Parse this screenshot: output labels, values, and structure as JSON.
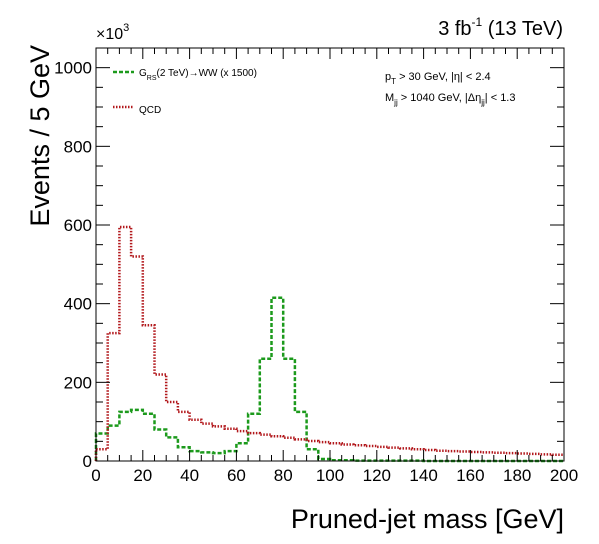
{
  "chart_data": {
    "type": "line",
    "subtype": "step-histogram",
    "xlabel": "Pruned-jet mass [GeV]",
    "ylabel": "Events / 5 GeV",
    "y_multiplier": "×10",
    "y_multiplier_exp": "3",
    "header_main": "3 fb",
    "header_exp": "-1",
    "header_tail": " (13 TeV)",
    "xlim": [
      0,
      200
    ],
    "ylim": [
      0,
      1050
    ],
    "xticks": [
      0,
      20,
      40,
      60,
      80,
      100,
      120,
      140,
      160,
      180,
      200
    ],
    "yticks": [
      0,
      200,
      400,
      600,
      800,
      1000
    ],
    "grid": false,
    "bin_width": 5,
    "cuts": {
      "line1_a": "p",
      "line1_sub": "T",
      "line1_b": " > 30 GeV, |η| < 2.4",
      "line2_a": "M",
      "line2_sub": "jj",
      "line2_b": " > 1040 GeV, |Δη",
      "line2_sub2": "jj",
      "line2_c": "| < 1.3"
    },
    "legend_position": "top-left",
    "series": [
      {
        "name_main": "G",
        "name_sub": "RS",
        "name_tail": "(2 TeV)→WW (x 1500)",
        "color": "#1c9a1c",
        "style": "dashed",
        "bin_edges": [
          -5,
          0,
          5,
          10,
          15,
          20,
          25,
          30,
          35,
          40,
          45,
          50,
          55,
          60,
          65,
          70,
          75,
          80,
          85,
          90,
          95,
          100,
          105,
          110,
          115,
          120,
          125,
          130,
          135,
          140,
          145,
          150,
          155,
          160,
          165,
          170,
          175,
          180,
          185,
          190,
          195,
          200
        ],
        "values": [
          50,
          70,
          90,
          125,
          130,
          120,
          80,
          60,
          35,
          25,
          22,
          20,
          25,
          45,
          120,
          260,
          415,
          260,
          125,
          30,
          5,
          2,
          2,
          1,
          1,
          1,
          1,
          1,
          1,
          0,
          0,
          0,
          0,
          0,
          0,
          0,
          0,
          0,
          0,
          0,
          0
        ]
      },
      {
        "name": "QCD",
        "color": "#b2181c",
        "style": "dotted",
        "bin_edges": [
          0,
          5,
          10,
          15,
          20,
          25,
          30,
          35,
          40,
          45,
          50,
          55,
          60,
          65,
          70,
          75,
          80,
          85,
          90,
          95,
          100,
          105,
          110,
          115,
          120,
          125,
          130,
          135,
          140,
          145,
          150,
          155,
          160,
          165,
          170,
          175,
          180,
          185,
          190,
          195,
          200
        ],
        "values": [
          30,
          325,
          595,
          520,
          345,
          220,
          150,
          125,
          105,
          95,
          88,
          82,
          76,
          71,
          67,
          63,
          59,
          55,
          51,
          48,
          45,
          42,
          40,
          38,
          36,
          34,
          32,
          30,
          28,
          26,
          25,
          24,
          23,
          22,
          21,
          20,
          19,
          18,
          17,
          16
        ]
      }
    ]
  }
}
